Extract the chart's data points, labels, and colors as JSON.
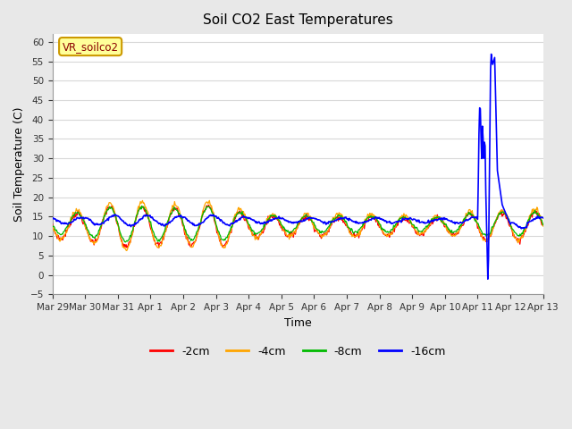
{
  "title": "Soil CO2 East Temperatures",
  "xlabel": "Time",
  "ylabel": "Soil Temperature (C)",
  "ylim": [
    -5,
    62
  ],
  "yticks": [
    -5,
    0,
    5,
    10,
    15,
    20,
    25,
    30,
    35,
    40,
    45,
    50,
    55,
    60
  ],
  "fig_bg": "#e8e8e8",
  "plot_bg": "#ffffff",
  "grid_color": "#d8d8d8",
  "series_colors": {
    "-2cm": "#ff0000",
    "-4cm": "#ffa500",
    "-8cm": "#00bb00",
    "-16cm": "#0000ff"
  },
  "legend_label": "VR_soilco2",
  "tick_labels": [
    "Mar 29",
    "Mar 30",
    "Mar 31",
    "Apr 1",
    "Apr 2",
    "Apr 3",
    "Apr 4",
    "Apr 5",
    "Apr 6",
    "Apr 7",
    "Apr 8",
    "Apr 9",
    "Apr 10",
    "Apr 11",
    "Apr 12",
    "Apr 13"
  ],
  "num_days": 15,
  "pts_per_day": 48
}
